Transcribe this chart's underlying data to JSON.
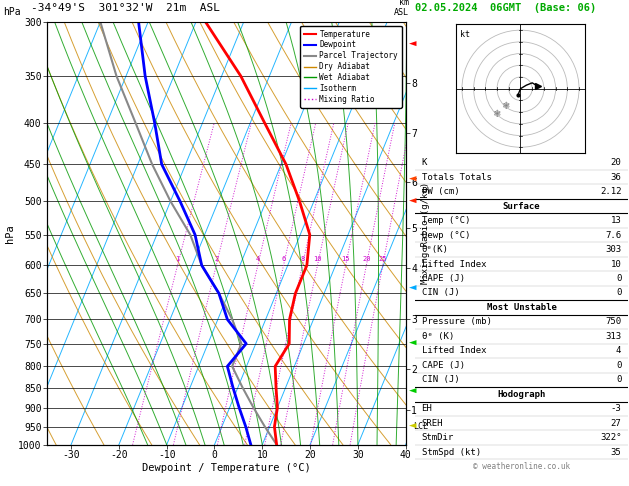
{
  "title_left": "-34°49'S  301°32'W  21m  ASL",
  "title_right": "02.05.2024  06GMT  (Base: 06)",
  "xlabel": "Dewpoint / Temperature (°C)",
  "ylabel_left": "hPa",
  "pressure_ticks": [
    300,
    350,
    400,
    450,
    500,
    550,
    600,
    650,
    700,
    750,
    800,
    850,
    900,
    950,
    1000
  ],
  "xlim_T": [
    -35,
    40
  ],
  "temp_color": "#ff0000",
  "dewpoint_color": "#0000ff",
  "parcel_color": "#888888",
  "dry_adiabat_color": "#cc8800",
  "wet_adiabat_color": "#009900",
  "isotherm_color": "#00aaff",
  "mixing_ratio_color": "#cc00cc",
  "temp_data": {
    "pressure": [
      1000,
      950,
      900,
      850,
      800,
      750,
      700,
      650,
      600,
      550,
      500,
      450,
      400,
      350,
      300
    ],
    "temp": [
      13,
      11,
      10,
      8,
      6,
      7,
      5,
      4,
      4,
      2,
      -3,
      -9,
      -17,
      -26,
      -38
    ]
  },
  "dewpoint_data": {
    "pressure": [
      1000,
      950,
      900,
      850,
      800,
      750,
      700,
      650,
      600,
      550,
      500,
      450,
      400,
      350,
      300
    ],
    "dewp": [
      7.6,
      5,
      2,
      -1,
      -4,
      -2,
      -8,
      -12,
      -18,
      -22,
      -28,
      -35,
      -40,
      -46,
      -52
    ]
  },
  "parcel_data": {
    "pressure": [
      1000,
      950,
      900,
      850,
      800,
      750,
      700,
      650,
      600,
      550,
      500,
      450,
      400,
      350,
      300
    ],
    "temp": [
      13,
      9,
      5,
      1,
      -3,
      -3,
      -7,
      -12,
      -18,
      -23,
      -30,
      -37,
      -44,
      -52,
      -60
    ]
  },
  "stats": {
    "K": 20,
    "Totals Totals": 36,
    "PW (cm)": "2.12",
    "Surface": {
      "Temp (C)": 13,
      "Dewp (C)": 7.6,
      "theta_e (K)": 303,
      "Lifted Index": 10,
      "CAPE (J)": 0,
      "CIN (J)": 0
    },
    "Most Unstable": {
      "Pressure (mb)": 750,
      "theta_e (K)": 313,
      "Lifted Index": 4,
      "CAPE (J)": 0,
      "CIN (J)": 0
    },
    "Hodograph": {
      "EH": -3,
      "SREH": 27,
      "StmDir": "322°",
      "StmSpd (kt)": 35
    }
  },
  "mixing_ratio_values": [
    1,
    2,
    4,
    6,
    8,
    10,
    15,
    20,
    25
  ],
  "km_ticks": [
    1,
    2,
    3,
    4,
    5,
    6,
    7,
    8
  ],
  "km_pressures": [
    905,
    805,
    700,
    605,
    540,
    473,
    412,
    357
  ],
  "lcl_pressure": 950,
  "background_color": "#ffffff"
}
